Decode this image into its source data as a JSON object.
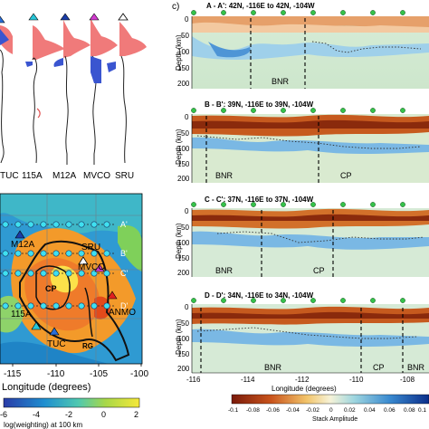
{
  "panel_c_label": "c)",
  "stations": [
    "TUC",
    "115A",
    "M12A",
    "MVCO",
    "SRU"
  ],
  "station_marker_colors": [
    "#2a6ed8",
    "#27c6d8",
    "#1a3da8",
    "#d23bd0",
    "#ffffff"
  ],
  "map": {
    "station_labels": [
      "M12A",
      "SRU",
      "MVCO",
      "ANMO",
      "115A",
      "TUC"
    ],
    "region_labels": [
      "CP",
      "RG"
    ],
    "profile_labels": [
      "A'",
      "B'",
      "C'",
      "D'"
    ],
    "lon_ticks": [
      "-115",
      "-110",
      "-105",
      "-100"
    ],
    "xlabel": "Longitude (degrees)",
    "colorbar_ticks": [
      "-6",
      "-4",
      "-2",
      "0",
      "2"
    ],
    "colorbar_label": "log(weighting) at 100 km"
  },
  "sections": [
    {
      "title": "A - A': 42N, -116E   to   42N, -104W",
      "labels": [
        "BNR"
      ]
    },
    {
      "title": "B - B': 39N, -116E   to   39N, -104W",
      "labels": [
        "BNR",
        "CP"
      ]
    },
    {
      "title": "C - C': 37N, -116E   to   37N, -104W",
      "labels": [
        "BNR",
        "CP"
      ]
    },
    {
      "title": "D - D': 34N, -116E   to   34N, -104W",
      "labels": [
        "BNR",
        "CP",
        "BNR"
      ]
    }
  ],
  "depth_axis": {
    "label": "Depth (km)",
    "ticks": [
      "0",
      "50",
      "100",
      "150",
      "200"
    ]
  },
  "lon_axis": {
    "ticks": [
      "-116",
      "-114",
      "-112",
      "-110",
      "-108"
    ],
    "label": "Longitude (degrees)"
  },
  "stack_colorbar": {
    "ticks": [
      "-0.1",
      "-0.08",
      "-0.06",
      "-0.04",
      "-0.02",
      "0",
      "0.02",
      "0.04",
      "0.06",
      "0.08",
      "0.1"
    ],
    "label": "Stack Amplitude"
  }
}
